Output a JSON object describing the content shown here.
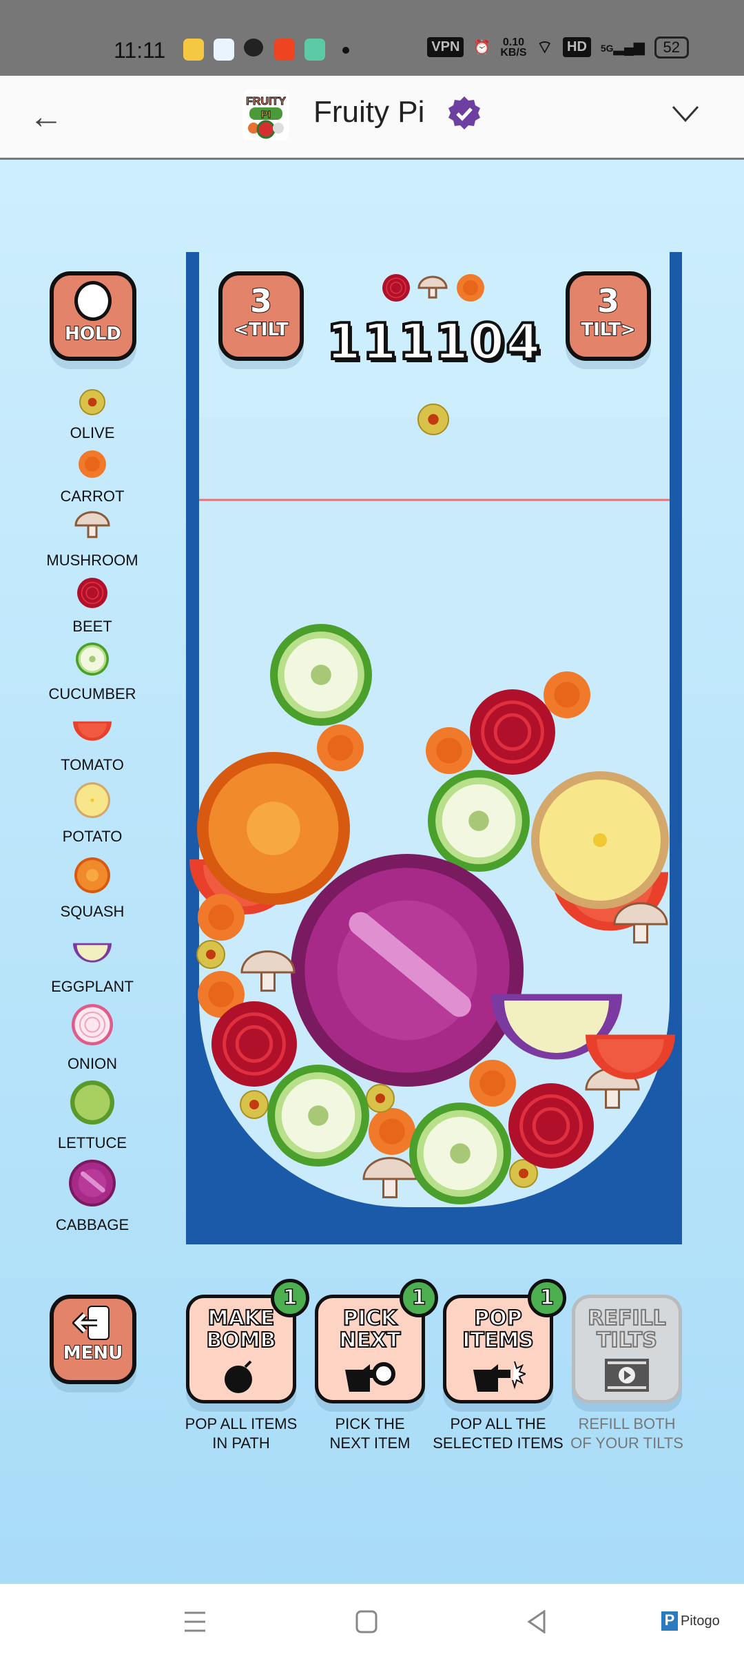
{
  "status_bar": {
    "time": "11:11",
    "vpn": "VPN",
    "speed_value": "0.10",
    "speed_unit": "KB/S",
    "hd": "HD",
    "network": "5G",
    "battery": "52"
  },
  "header": {
    "title": "Fruity Pi",
    "verified_color": "#6c3fa0"
  },
  "hud": {
    "hold_label": "HOLD",
    "tilt_left_count": "3",
    "tilt_left_label": "<TILT",
    "tilt_right_count": "3",
    "tilt_right_label": "TILT>",
    "score": "111104",
    "next_items": [
      "beet",
      "mushroom",
      "carrot"
    ],
    "current_item": "olive"
  },
  "legend": [
    "OLIVE",
    "CARROT",
    "MUSHROOM",
    "BEET",
    "CUCUMBER",
    "TOMATO",
    "POTATO",
    "SQUASH",
    "EGGPLANT",
    "ONION",
    "LETTUCE",
    "CABBAGE"
  ],
  "menu_label": "MENU",
  "powerups": [
    {
      "line1": "MAKE",
      "line2": "BOMB",
      "count": "1",
      "desc1": "POP ALL ITEMS",
      "desc2": "IN PATH",
      "icon": "bomb-icon"
    },
    {
      "line1": "PICK",
      "line2": "NEXT",
      "count": "1",
      "desc1": "PICK THE",
      "desc2": "NEXT ITEM",
      "icon": "pointing-hand-icon"
    },
    {
      "line1": "POP",
      "line2": "ITEMS",
      "count": "1",
      "desc1": "POP ALL THE",
      "desc2": "SELECTED ITEMS",
      "icon": "pointing-hand-burst-icon"
    },
    {
      "line1": "REFILL",
      "line2": "TILTS",
      "desc1": "REFILL BOTH",
      "desc2": "OF YOUR TILTS",
      "icon": "video-icon",
      "disabled": true
    }
  ],
  "watermark": "Pitogo",
  "colors": {
    "container": "#1a5aa8",
    "button": "#e2836a",
    "badge": "#4caf50",
    "danger_line": "#f07070"
  }
}
